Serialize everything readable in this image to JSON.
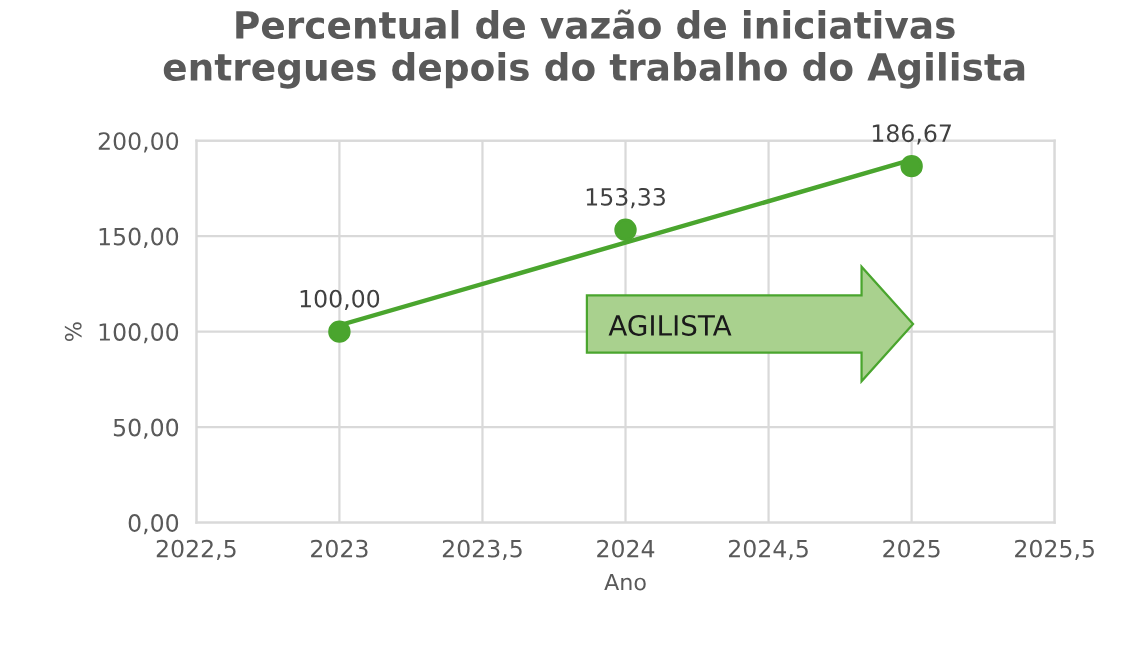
{
  "chart_data": {
    "type": "scatter",
    "title": "Percentual de vazão de iniciativas\nentregues depois do trabalho do Agilista",
    "xlabel": "Ano",
    "ylabel": "%",
    "series": [
      {
        "color": "#4aa52e",
        "marker": "circle",
        "x": [
          2023,
          2024,
          2025
        ],
        "values": [
          100,
          153.33,
          186.67
        ],
        "value_labels": [
          "100,00",
          "153,33",
          "186,67"
        ]
      },
      {
        "type": "line",
        "marker": "none",
        "color": "#4aa52e",
        "x": [
          2023,
          2025
        ],
        "values": [
          103.3,
          190
        ]
      }
    ],
    "grid": true,
    "xlim": [
      2022.5,
      2025.5
    ],
    "xticks": [
      {
        "value": 2022.5,
        "label": "2022,5"
      },
      2023,
      {
        "value": 2023.5,
        "label": "2023,5"
      },
      2024,
      {
        "value": 2024.5,
        "label": "2024,5"
      },
      2025,
      {
        "value": 2025.5,
        "label": "2025,5"
      }
    ],
    "ylim": [
      0,
      200
    ],
    "yticks": [
      {
        "value": 0,
        "label": "0,00"
      },
      {
        "value": 50,
        "label": "50,00"
      },
      {
        "value": 100,
        "label": "100,00"
      },
      {
        "value": 150,
        "label": "150,00"
      },
      {
        "value": 200,
        "label": "200,00"
      }
    ],
    "annotations": [
      "AGILISTA"
    ]
  }
}
